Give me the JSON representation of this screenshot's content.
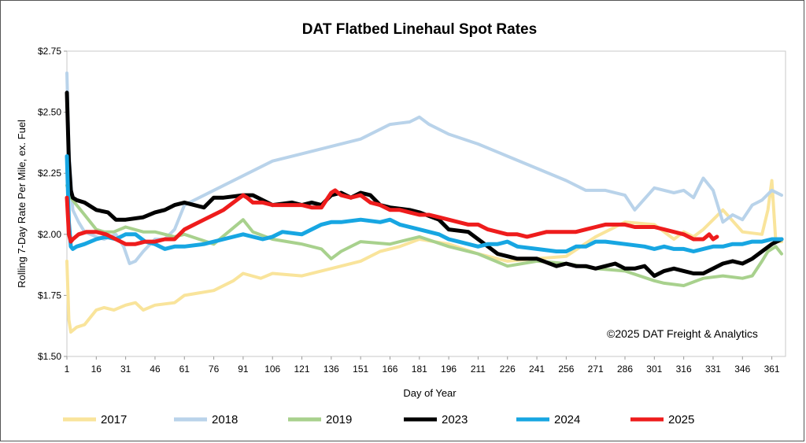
{
  "chart_data": {
    "type": "line",
    "title": "DAT Flatbed Linehaul Spot Rates",
    "xlabel": "Day of Year",
    "ylabel": "Rolling 7-Day Rate Per Mile, ex. Fuel",
    "annotation": "©2025 DAT Freight & Analytics",
    "xlim": [
      1,
      368
    ],
    "ylim": [
      1.5,
      2.75
    ],
    "x_ticks": [
      1,
      16,
      31,
      46,
      61,
      76,
      91,
      106,
      121,
      136,
      151,
      166,
      181,
      196,
      211,
      226,
      241,
      256,
      271,
      286,
      301,
      316,
      331,
      346,
      361
    ],
    "y_ticks": [
      {
        "value": 1.5,
        "label": "$1.50"
      },
      {
        "value": 1.75,
        "label": "$1.75"
      },
      {
        "value": 2.0,
        "label": "$2.00"
      },
      {
        "value": 2.25,
        "label": "$2.25"
      },
      {
        "value": 2.5,
        "label": "$2.50"
      },
      {
        "value": 2.75,
        "label": "$2.75"
      }
    ],
    "grid": false,
    "legend_position": "bottom",
    "series": [
      {
        "name": "2017",
        "color": "#f9e49b",
        "width": 4,
        "x": [
          1,
          2,
          3,
          6,
          10,
          16,
          20,
          25,
          31,
          36,
          40,
          46,
          56,
          61,
          76,
          86,
          91,
          100,
          106,
          121,
          136,
          151,
          161,
          171,
          181,
          196,
          211,
          226,
          241,
          256,
          271,
          286,
          301,
          311,
          316,
          321,
          326,
          331,
          336,
          346,
          356,
          359,
          361,
          363,
          366
        ],
        "y": [
          1.89,
          1.65,
          1.6,
          1.62,
          1.63,
          1.69,
          1.7,
          1.69,
          1.71,
          1.72,
          1.69,
          1.71,
          1.72,
          1.75,
          1.77,
          1.81,
          1.84,
          1.82,
          1.84,
          1.83,
          1.86,
          1.89,
          1.93,
          1.95,
          1.98,
          1.96,
          1.92,
          1.89,
          1.9,
          1.91,
          1.99,
          2.05,
          2.04,
          1.98,
          2.01,
          1.99,
          2.02,
          2.06,
          2.1,
          2.01,
          2.0,
          2.1,
          2.22,
          1.97,
          1.97
        ]
      },
      {
        "name": "2018",
        "color": "#b9d3ea",
        "width": 4,
        "x": [
          1,
          2,
          4,
          7,
          10,
          16,
          20,
          26,
          30,
          33,
          36,
          40,
          46,
          51,
          56,
          61,
          76,
          91,
          106,
          121,
          136,
          151,
          166,
          176,
          181,
          186,
          196,
          211,
          226,
          241,
          256,
          266,
          276,
          286,
          291,
          301,
          311,
          316,
          321,
          326,
          331,
          336,
          341,
          346,
          351,
          356,
          361,
          366
        ],
        "y": [
          2.66,
          2.35,
          2.1,
          2.05,
          2.01,
          1.99,
          1.98,
          2.0,
          1.95,
          1.88,
          1.89,
          1.93,
          1.98,
          1.98,
          2.02,
          2.12,
          2.18,
          2.24,
          2.3,
          2.33,
          2.36,
          2.39,
          2.45,
          2.46,
          2.48,
          2.45,
          2.41,
          2.37,
          2.32,
          2.27,
          2.22,
          2.18,
          2.18,
          2.16,
          2.1,
          2.19,
          2.17,
          2.18,
          2.15,
          2.23,
          2.18,
          2.05,
          2.08,
          2.06,
          2.12,
          2.14,
          2.18,
          2.16
        ]
      },
      {
        "name": "2019",
        "color": "#a8d18d",
        "width": 4,
        "x": [
          1,
          3,
          6,
          10,
          16,
          20,
          25,
          31,
          40,
          46,
          56,
          61,
          76,
          91,
          96,
          106,
          121,
          131,
          136,
          141,
          151,
          166,
          181,
          196,
          211,
          226,
          241,
          256,
          271,
          286,
          301,
          306,
          316,
          326,
          336,
          346,
          351,
          356,
          359,
          363,
          366
        ],
        "y": [
          2.2,
          2.15,
          2.12,
          2.08,
          2.02,
          2.01,
          2.01,
          2.03,
          2.01,
          2.01,
          1.99,
          2.0,
          1.96,
          2.06,
          2.01,
          1.98,
          1.96,
          1.94,
          1.9,
          1.93,
          1.97,
          1.96,
          1.99,
          1.95,
          1.92,
          1.87,
          1.89,
          1.88,
          1.86,
          1.85,
          1.81,
          1.8,
          1.79,
          1.82,
          1.83,
          1.82,
          1.83,
          1.89,
          1.93,
          1.95,
          1.92
        ]
      },
      {
        "name": "2023",
        "color": "#000000",
        "width": 5,
        "x": [
          1,
          2,
          3,
          4,
          6,
          10,
          16,
          22,
          26,
          31,
          40,
          46,
          51,
          56,
          61,
          71,
          76,
          81,
          91,
          96,
          106,
          116,
          121,
          126,
          131,
          136,
          141,
          146,
          151,
          156,
          161,
          166,
          176,
          181,
          191,
          196,
          206,
          211,
          216,
          221,
          226,
          231,
          241,
          251,
          256,
          261,
          266,
          271,
          276,
          281,
          286,
          291,
          296,
          301,
          306,
          311,
          316,
          321,
          326,
          331,
          336,
          341,
          346,
          351,
          356,
          361,
          366
        ],
        "y": [
          2.58,
          2.3,
          2.18,
          2.15,
          2.14,
          2.13,
          2.1,
          2.09,
          2.06,
          2.06,
          2.07,
          2.09,
          2.1,
          2.12,
          2.13,
          2.11,
          2.15,
          2.15,
          2.16,
          2.16,
          2.12,
          2.13,
          2.12,
          2.13,
          2.12,
          2.16,
          2.17,
          2.15,
          2.17,
          2.16,
          2.12,
          2.11,
          2.1,
          2.09,
          2.06,
          2.02,
          2.01,
          1.98,
          1.95,
          1.92,
          1.91,
          1.9,
          1.9,
          1.87,
          1.88,
          1.87,
          1.87,
          1.86,
          1.87,
          1.88,
          1.86,
          1.86,
          1.87,
          1.83,
          1.85,
          1.86,
          1.85,
          1.84,
          1.84,
          1.86,
          1.88,
          1.89,
          1.88,
          1.9,
          1.93,
          1.96,
          1.98
        ]
      },
      {
        "name": "2024",
        "color": "#17a6e2",
        "width": 5,
        "x": [
          1,
          2,
          3,
          4,
          6,
          10,
          16,
          21,
          26,
          31,
          36,
          41,
          46,
          51,
          56,
          61,
          71,
          81,
          91,
          101,
          106,
          111,
          121,
          131,
          136,
          141,
          151,
          161,
          166,
          171,
          181,
          186,
          191,
          196,
          201,
          206,
          211,
          216,
          221,
          226,
          231,
          241,
          251,
          256,
          261,
          266,
          271,
          276,
          286,
          296,
          301,
          306,
          311,
          316,
          321,
          326,
          331,
          336,
          341,
          346,
          351,
          356,
          361,
          366
        ],
        "y": [
          2.32,
          2.05,
          1.95,
          1.94,
          1.95,
          1.96,
          1.98,
          1.99,
          1.98,
          2.0,
          2.0,
          1.97,
          1.96,
          1.94,
          1.95,
          1.95,
          1.96,
          1.98,
          2.0,
          1.98,
          1.99,
          2.01,
          2.0,
          2.04,
          2.05,
          2.05,
          2.06,
          2.05,
          2.06,
          2.04,
          2.02,
          2.01,
          2.0,
          1.98,
          1.97,
          1.96,
          1.95,
          1.96,
          1.96,
          1.97,
          1.95,
          1.94,
          1.93,
          1.93,
          1.95,
          1.95,
          1.97,
          1.97,
          1.96,
          1.95,
          1.94,
          1.95,
          1.94,
          1.94,
          1.93,
          1.94,
          1.95,
          1.95,
          1.96,
          1.96,
          1.97,
          1.97,
          1.98,
          1.98
        ]
      },
      {
        "name": "2025",
        "color": "#ee1c1c",
        "width": 5,
        "x": [
          1,
          2,
          3,
          4,
          7,
          11,
          16,
          21,
          26,
          31,
          36,
          41,
          46,
          51,
          56,
          61,
          66,
          71,
          76,
          81,
          86,
          91,
          93,
          96,
          101,
          106,
          111,
          116,
          121,
          126,
          131,
          136,
          138,
          141,
          146,
          151,
          156,
          161,
          166,
          171,
          176,
          181,
          186,
          191,
          196,
          201,
          206,
          211,
          216,
          221,
          226,
          231,
          236,
          241,
          246,
          251,
          256,
          261,
          266,
          271,
          276,
          281,
          286,
          291,
          296,
          301,
          306,
          311,
          316,
          321,
          326,
          329,
          331,
          333
        ],
        "y": [
          2.15,
          2.0,
          1.97,
          1.98,
          2.0,
          2.01,
          2.01,
          2.0,
          1.98,
          1.96,
          1.96,
          1.97,
          1.97,
          1.98,
          1.98,
          2.02,
          2.04,
          2.06,
          2.08,
          2.1,
          2.13,
          2.16,
          2.15,
          2.13,
          2.13,
          2.12,
          2.12,
          2.12,
          2.12,
          2.11,
          2.11,
          2.17,
          2.18,
          2.16,
          2.15,
          2.16,
          2.13,
          2.12,
          2.1,
          2.1,
          2.09,
          2.08,
          2.08,
          2.07,
          2.06,
          2.05,
          2.04,
          2.04,
          2.02,
          2.01,
          2.0,
          2.0,
          1.99,
          2.0,
          2.01,
          2.01,
          2.01,
          2.01,
          2.02,
          2.03,
          2.04,
          2.04,
          2.04,
          2.03,
          2.03,
          2.03,
          2.02,
          2.01,
          2.0,
          1.98,
          1.98,
          2.0,
          1.98,
          1.99
        ]
      }
    ]
  }
}
